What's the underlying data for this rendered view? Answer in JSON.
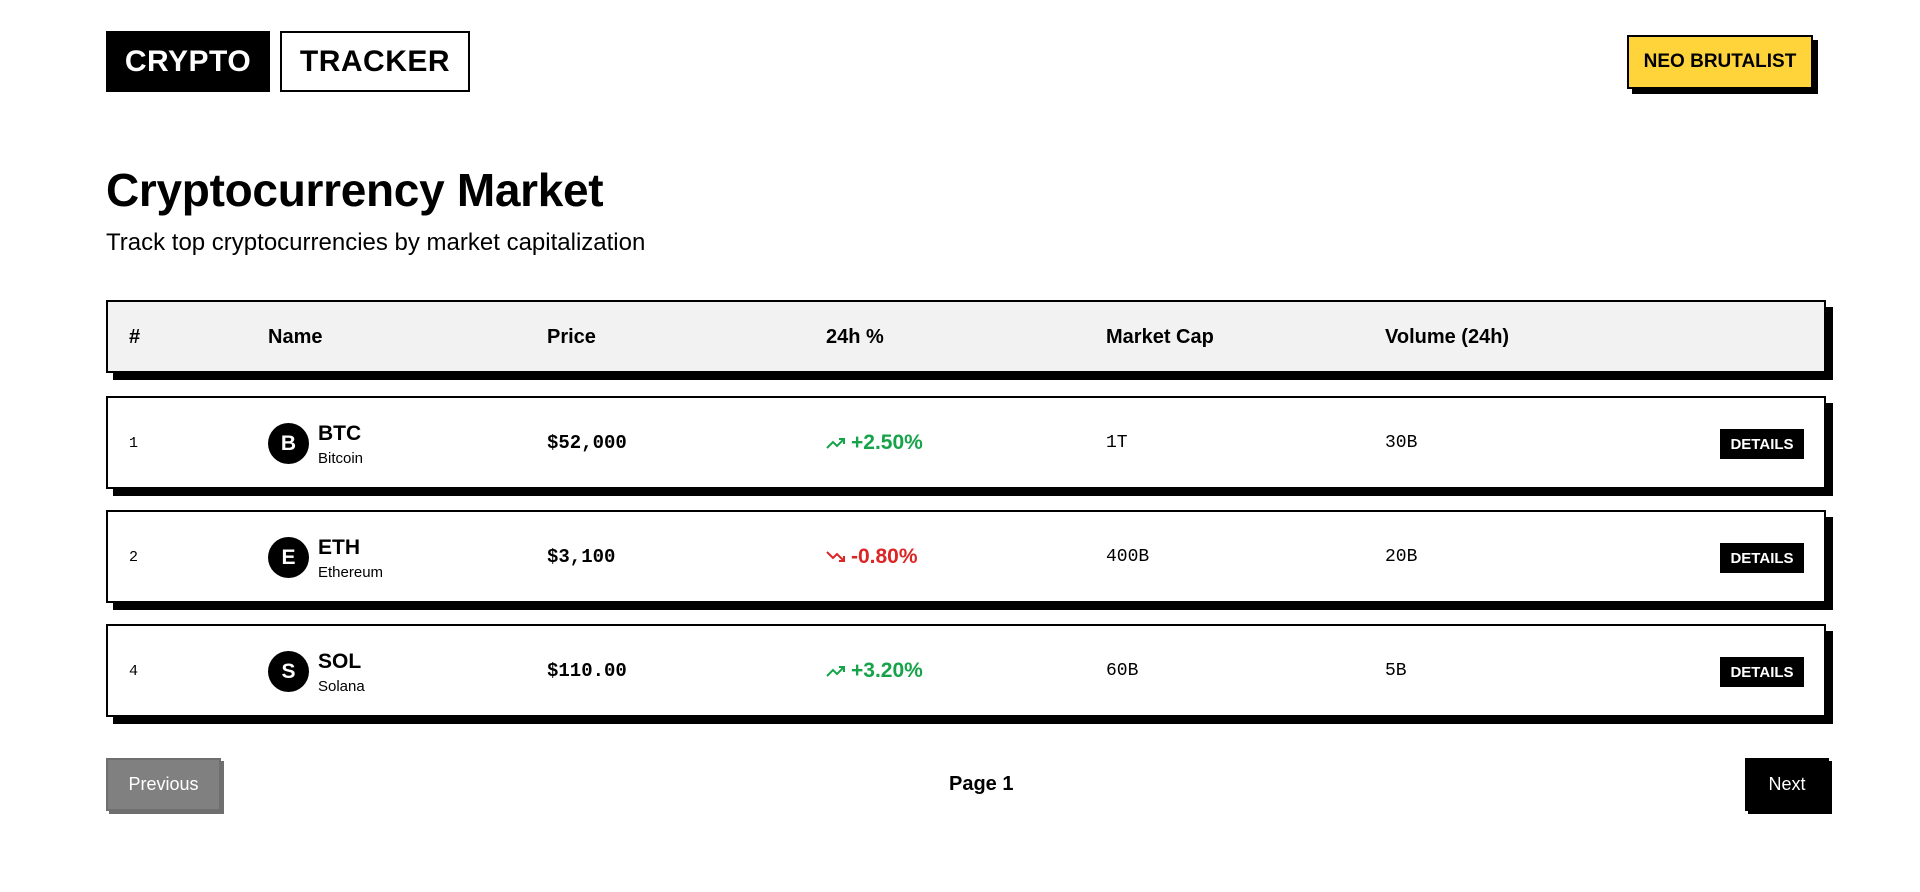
{
  "header": {
    "logo_part1": "CRYPTO",
    "logo_part2": "TRACKER",
    "badge": "NEO BRUTALIST"
  },
  "page": {
    "title": "Cryptocurrency Market",
    "subtitle": "Track top cryptocurrencies by market capitalization"
  },
  "table": {
    "columns": [
      "#",
      "Name",
      "Price",
      "24h %",
      "Market Cap",
      "Volume (24h)"
    ],
    "rows": [
      {
        "rank": "1",
        "avatar": "B",
        "symbol": "BTC",
        "name": "Bitcoin",
        "price": "$52,000",
        "change": "+2.50%",
        "direction": "up",
        "market_cap": "1T",
        "volume": "30B",
        "action": "DETAILS"
      },
      {
        "rank": "2",
        "avatar": "E",
        "symbol": "ETH",
        "name": "Ethereum",
        "price": "$3,100",
        "change": "-0.80%",
        "direction": "down",
        "market_cap": "400B",
        "volume": "20B",
        "action": "DETAILS"
      },
      {
        "rank": "4",
        "avatar": "S",
        "symbol": "SOL",
        "name": "Solana",
        "price": "$110.00",
        "change": "+3.20%",
        "direction": "up",
        "market_cap": "60B",
        "volume": "5B",
        "action": "DETAILS"
      }
    ]
  },
  "pagination": {
    "previous_label": "Previous",
    "page_label": "Page 1",
    "next_label": "Next"
  },
  "colors": {
    "badge": "#ffd43b",
    "positive": "#16a34a",
    "negative": "#dc2626",
    "disabled": "#808080"
  },
  "icons": {
    "up": "trending-up-icon",
    "down": "trending-down-icon"
  }
}
